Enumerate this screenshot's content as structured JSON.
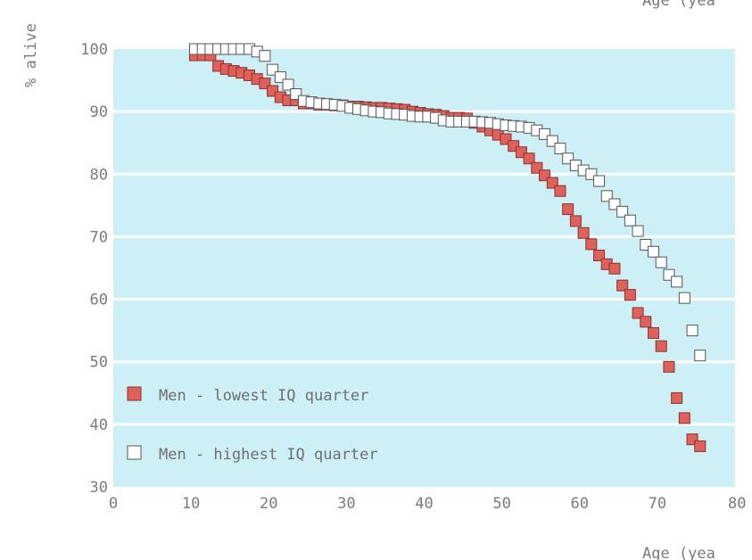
{
  "chart_data": {
    "type": "scatter",
    "title": "",
    "xlabel": "Age (yea",
    "top_label": "Age (yea",
    "ylabel": "% alive",
    "xlim": [
      0,
      80
    ],
    "ylim": [
      30,
      100
    ],
    "x_ticks": [
      "0",
      "10",
      "20",
      "30",
      "40",
      "50",
      "60",
      "70",
      "80"
    ],
    "y_ticks": [
      "30",
      "40",
      "50",
      "60",
      "70",
      "80",
      "90",
      "100"
    ],
    "grid": true,
    "legend_position": "bottom-left",
    "plot_background": "#cdf0f7",
    "gridline_color": "#ffffff",
    "series": [
      {
        "name": "Men - lowest IQ quarter",
        "marker": "filled-square",
        "color": "#e0605a",
        "points": [
          [
            10.5,
            99
          ],
          [
            11.5,
            99
          ],
          [
            12.5,
            99
          ],
          [
            13.5,
            97.3
          ],
          [
            14.5,
            96.8
          ],
          [
            15.5,
            96.5
          ],
          [
            16.5,
            96.2
          ],
          [
            17.5,
            95.8
          ],
          [
            18.5,
            95.2
          ],
          [
            19.5,
            94.5
          ],
          [
            20.5,
            93.3
          ],
          [
            21.5,
            92.3
          ],
          [
            22.5,
            91.8
          ],
          [
            23.5,
            91.8
          ],
          [
            24.5,
            91.3
          ],
          [
            25.5,
            91.3
          ],
          [
            26.5,
            91.1
          ],
          [
            27.5,
            91.1
          ],
          [
            28.5,
            91.0
          ],
          [
            29.5,
            91.0
          ],
          [
            30.5,
            90.8
          ],
          [
            31.5,
            90.8
          ],
          [
            32.5,
            90.7
          ],
          [
            33.5,
            90.6
          ],
          [
            34.5,
            90.6
          ],
          [
            35.5,
            90.5
          ],
          [
            36.5,
            90.4
          ],
          [
            37.5,
            90.3
          ],
          [
            38.5,
            90.0
          ],
          [
            39.5,
            89.8
          ],
          [
            40.5,
            89.6
          ],
          [
            41.5,
            89.5
          ],
          [
            42.5,
            89.3
          ],
          [
            43.5,
            89.0
          ],
          [
            44.5,
            89.0
          ],
          [
            45.5,
            88.9
          ],
          [
            46.5,
            88.2
          ],
          [
            47.5,
            87.6
          ],
          [
            48.5,
            87.0
          ],
          [
            49.5,
            86.3
          ],
          [
            50.5,
            85.6
          ],
          [
            51.5,
            84.5
          ],
          [
            52.5,
            83.5
          ],
          [
            53.5,
            82.5
          ],
          [
            54.5,
            81.0
          ],
          [
            55.5,
            79.8
          ],
          [
            56.5,
            78.6
          ],
          [
            57.5,
            77.3
          ],
          [
            58.5,
            74.4
          ],
          [
            59.5,
            72.5
          ],
          [
            60.5,
            70.6
          ],
          [
            61.5,
            68.8
          ],
          [
            62.5,
            67.0
          ],
          [
            63.5,
            65.6
          ],
          [
            64.5,
            64.9
          ],
          [
            65.5,
            62.2
          ],
          [
            66.5,
            60.7
          ],
          [
            67.5,
            57.8
          ],
          [
            68.5,
            56.4
          ],
          [
            69.5,
            54.6
          ],
          [
            70.5,
            52.5
          ],
          [
            71.5,
            49.2
          ],
          [
            72.5,
            44.2
          ],
          [
            73.5,
            41.0
          ],
          [
            74.5,
            37.6
          ],
          [
            75.5,
            36.5
          ]
        ]
      },
      {
        "name": "Men - highest IQ quarter",
        "marker": "open-square",
        "color": "#ffffff",
        "points": [
          [
            10.5,
            100
          ],
          [
            11.5,
            100
          ],
          [
            12.5,
            100
          ],
          [
            13.5,
            100
          ],
          [
            14.5,
            100
          ],
          [
            15.5,
            100
          ],
          [
            16.5,
            100
          ],
          [
            17.5,
            100
          ],
          [
            18.5,
            99.6
          ],
          [
            19.5,
            98.9
          ],
          [
            20.5,
            96.7
          ],
          [
            21.5,
            95.5
          ],
          [
            22.5,
            94.3
          ],
          [
            23.5,
            92.8
          ],
          [
            24.5,
            91.7
          ],
          [
            25.5,
            91.5
          ],
          [
            26.5,
            91.3
          ],
          [
            27.5,
            91.2
          ],
          [
            28.5,
            91.1
          ],
          [
            29.5,
            90.9
          ],
          [
            30.5,
            90.6
          ],
          [
            31.5,
            90.4
          ],
          [
            32.5,
            90.2
          ],
          [
            33.5,
            90.0
          ],
          [
            34.5,
            89.9
          ],
          [
            35.5,
            89.7
          ],
          [
            36.5,
            89.6
          ],
          [
            37.5,
            89.5
          ],
          [
            38.5,
            89.3
          ],
          [
            39.5,
            89.2
          ],
          [
            40.5,
            89.2
          ],
          [
            41.5,
            89.0
          ],
          [
            42.5,
            88.6
          ],
          [
            43.5,
            88.4
          ],
          [
            44.5,
            88.4
          ],
          [
            45.5,
            88.4
          ],
          [
            46.5,
            88.4
          ],
          [
            47.5,
            88.3
          ],
          [
            48.5,
            88.2
          ],
          [
            49.5,
            88.0
          ],
          [
            50.5,
            87.8
          ],
          [
            51.5,
            87.7
          ],
          [
            52.5,
            87.6
          ],
          [
            53.5,
            87.4
          ],
          [
            54.5,
            87.0
          ],
          [
            55.5,
            86.4
          ],
          [
            56.5,
            85.3
          ],
          [
            57.5,
            84.1
          ],
          [
            58.5,
            82.5
          ],
          [
            59.5,
            81.4
          ],
          [
            60.5,
            80.6
          ],
          [
            61.5,
            80.0
          ],
          [
            62.5,
            78.9
          ],
          [
            63.5,
            76.5
          ],
          [
            64.5,
            75.2
          ],
          [
            65.5,
            74.0
          ],
          [
            66.5,
            72.6
          ],
          [
            67.5,
            70.9
          ],
          [
            68.5,
            68.7
          ],
          [
            69.5,
            67.6
          ],
          [
            70.5,
            65.9
          ],
          [
            71.5,
            63.9
          ],
          [
            72.5,
            62.8
          ],
          [
            73.5,
            60.2
          ],
          [
            74.5,
            55.0
          ],
          [
            75.5,
            51.0
          ]
        ]
      }
    ]
  }
}
